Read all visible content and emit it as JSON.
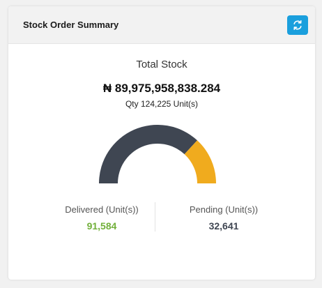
{
  "header": {
    "title": "Stock Order Summary",
    "refresh_icon": "refresh-icon"
  },
  "summary": {
    "label": "Total Stock",
    "amount": "₦ 89,975,958,838.284",
    "qty": "Qty 124,225 Unit(s)"
  },
  "gauge": {
    "delivered": 91584,
    "pending": 32641
  },
  "delivered": {
    "label": "Delivered (Unit(s))",
    "value": "91,584"
  },
  "pending": {
    "label": "Pending (Unit(s))",
    "value": "32,641"
  },
  "colors": {
    "accent": "#1a9fdd",
    "delivered_arc": "#3f4652",
    "pending_arc": "#f0ab1e",
    "delivered_text": "#72b03b",
    "pending_text": "#3f4652"
  }
}
